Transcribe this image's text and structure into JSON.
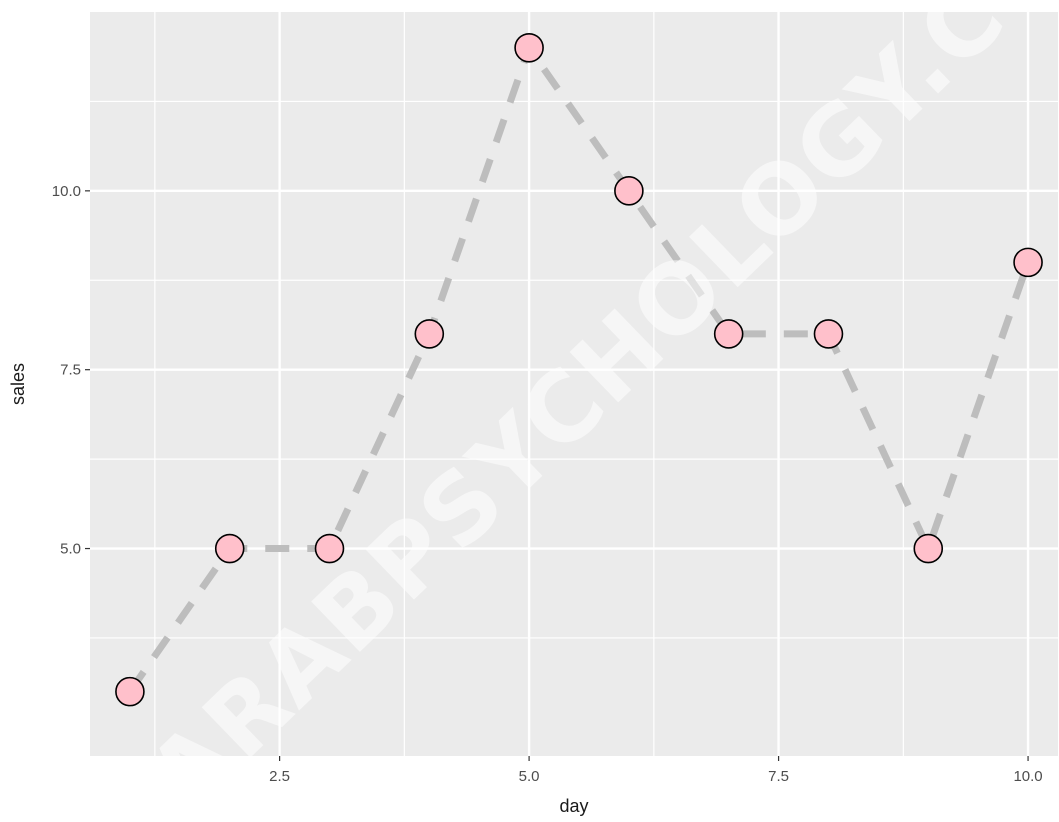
{
  "chart_data": {
    "type": "line",
    "xlabel": "day",
    "ylabel": "sales",
    "xlim": [
      0.6,
      10.3
    ],
    "ylim": [
      2.1,
      12.5
    ],
    "x_ticks": [
      {
        "value": 2.5,
        "label": "2.5"
      },
      {
        "value": 5.0,
        "label": "5.0"
      },
      {
        "value": 7.5,
        "label": "7.5"
      },
      {
        "value": 10.0,
        "label": "10.0"
      }
    ],
    "y_ticks": [
      {
        "value": 5.0,
        "label": "5.0"
      },
      {
        "value": 7.5,
        "label": "7.5"
      },
      {
        "value": 10.0,
        "label": "10.0"
      }
    ],
    "grid": true,
    "line_style": "dashed",
    "colors": {
      "panel": "#ebebeb",
      "grid": "#ffffff",
      "line": "#bdbdbd",
      "point_fill": "#ffc0cb",
      "point_stroke": "#000000"
    },
    "series": [
      {
        "x": [
          1,
          2,
          3,
          4,
          5,
          6,
          7,
          8,
          9,
          10
        ],
        "y": [
          3,
          5,
          5,
          8,
          12,
          10,
          8,
          8,
          5,
          9
        ]
      }
    ],
    "watermark": "ARABPSYCHOLOGY.C"
  }
}
